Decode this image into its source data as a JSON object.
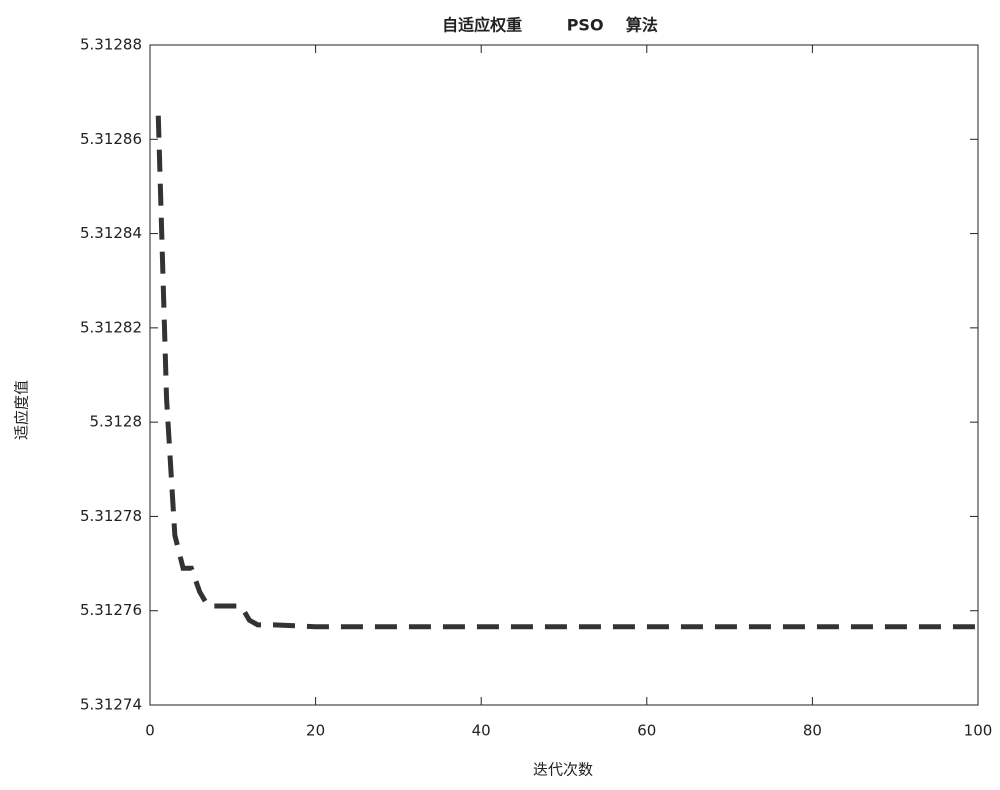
{
  "chart_data": {
    "type": "line",
    "title": "自适应权重        PSO    算法",
    "x_label": "迭代次数",
    "y_label": "适应度值",
    "xlim": [
      0,
      100
    ],
    "xticks": [
      0,
      20,
      40,
      60,
      80,
      100
    ],
    "ylim": [
      5.31274,
      5.31288
    ],
    "yticks": [
      5.31274,
      5.31276,
      5.31278,
      5.3128,
      5.31282,
      5.31284,
      5.31286,
      5.31288
    ],
    "grid": false,
    "series": [
      {
        "color": "#333333",
        "x": [
          1,
          2,
          3,
          4,
          5,
          6,
          7,
          8,
          10,
          11,
          12,
          13,
          15,
          20,
          30,
          40,
          50,
          60,
          70,
          80,
          90,
          100
        ],
        "values": [
          5.312865,
          5.312805,
          5.312776,
          5.312769,
          5.312769,
          5.312764,
          5.312761,
          5.312761,
          5.312761,
          5.312761,
          5.312758,
          5.312757,
          5.312757,
          5.3127566,
          5.3127566,
          5.3127566,
          5.3127566,
          5.3127566,
          5.3127566,
          5.3127566,
          5.3127566,
          5.3127566
        ]
      }
    ]
  }
}
